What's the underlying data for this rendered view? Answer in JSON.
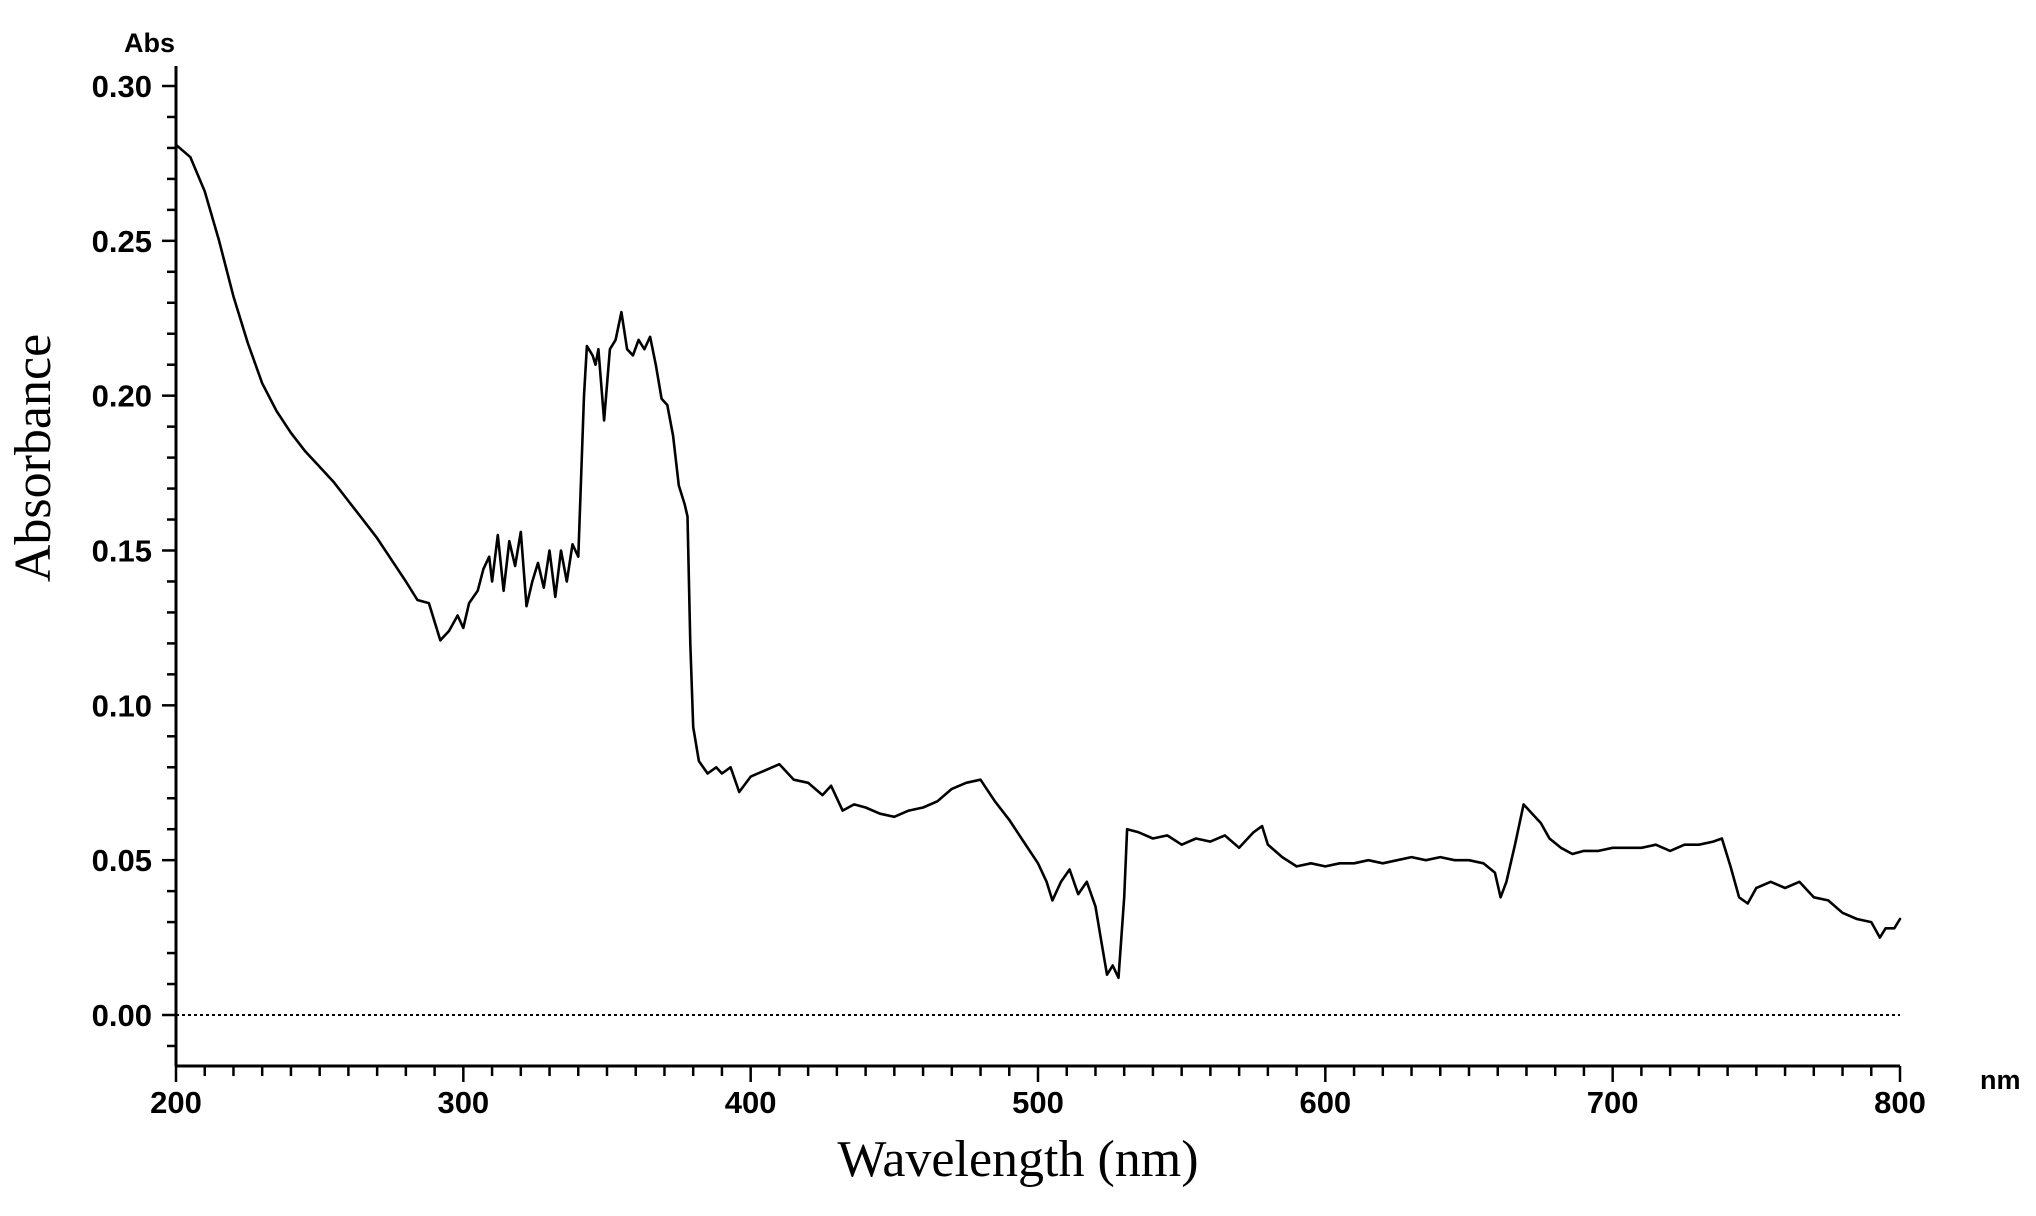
{
  "chart_data": {
    "type": "line",
    "xlabel": "Wavelength (nm)",
    "ylabel": "Absorbance",
    "x_unit": "nm",
    "y_unit": "Abs",
    "xlim": [
      200,
      800
    ],
    "ylim": [
      -0.015,
      0.305
    ],
    "x_ticks": [
      200,
      300,
      400,
      500,
      600,
      700,
      800
    ],
    "x_tick_labels": [
      "200",
      "300",
      "400",
      "500",
      "600",
      "700",
      "800"
    ],
    "y_ticks": [
      0.0,
      0.05,
      0.1,
      0.15,
      0.2,
      0.25,
      0.3
    ],
    "y_tick_labels": [
      "0.00",
      "0.05",
      "0.10",
      "0.15",
      "0.20",
      "0.25",
      "0.30"
    ],
    "baseline": 0.0,
    "grid": false,
    "series": [
      {
        "color": "#000000",
        "points": [
          [
            200,
            0.281
          ],
          [
            205,
            0.277
          ],
          [
            210,
            0.266
          ],
          [
            215,
            0.25
          ],
          [
            220,
            0.232
          ],
          [
            225,
            0.217
          ],
          [
            230,
            0.204
          ],
          [
            235,
            0.195
          ],
          [
            240,
            0.188
          ],
          [
            245,
            0.182
          ],
          [
            250,
            0.177
          ],
          [
            255,
            0.172
          ],
          [
            260,
            0.166
          ],
          [
            265,
            0.16
          ],
          [
            270,
            0.154
          ],
          [
            275,
            0.147
          ],
          [
            280,
            0.14
          ],
          [
            284,
            0.134
          ],
          [
            288,
            0.133
          ],
          [
            290,
            0.127
          ],
          [
            292,
            0.121
          ],
          [
            295,
            0.124
          ],
          [
            298,
            0.129
          ],
          [
            300,
            0.125
          ],
          [
            302,
            0.133
          ],
          [
            305,
            0.137
          ],
          [
            307,
            0.144
          ],
          [
            309,
            0.148
          ],
          [
            310,
            0.14
          ],
          [
            312,
            0.155
          ],
          [
            314,
            0.137
          ],
          [
            316,
            0.153
          ],
          [
            318,
            0.145
          ],
          [
            320,
            0.156
          ],
          [
            322,
            0.132
          ],
          [
            324,
            0.14
          ],
          [
            326,
            0.146
          ],
          [
            328,
            0.138
          ],
          [
            330,
            0.15
          ],
          [
            332,
            0.135
          ],
          [
            334,
            0.15
          ],
          [
            336,
            0.14
          ],
          [
            338,
            0.152
          ],
          [
            340,
            0.148
          ],
          [
            342,
            0.2
          ],
          [
            343,
            0.216
          ],
          [
            345,
            0.213
          ],
          [
            346,
            0.21
          ],
          [
            347,
            0.215
          ],
          [
            349,
            0.192
          ],
          [
            351,
            0.215
          ],
          [
            353,
            0.218
          ],
          [
            355,
            0.227
          ],
          [
            357,
            0.215
          ],
          [
            359,
            0.213
          ],
          [
            361,
            0.218
          ],
          [
            363,
            0.215
          ],
          [
            365,
            0.219
          ],
          [
            367,
            0.21
          ],
          [
            369,
            0.199
          ],
          [
            371,
            0.197
          ],
          [
            373,
            0.187
          ],
          [
            375,
            0.171
          ],
          [
            377,
            0.165
          ],
          [
            378,
            0.161
          ],
          [
            379,
            0.12
          ],
          [
            380,
            0.093
          ],
          [
            382,
            0.082
          ],
          [
            385,
            0.078
          ],
          [
            388,
            0.08
          ],
          [
            390,
            0.078
          ],
          [
            393,
            0.08
          ],
          [
            396,
            0.072
          ],
          [
            400,
            0.077
          ],
          [
            405,
            0.079
          ],
          [
            410,
            0.081
          ],
          [
            415,
            0.076
          ],
          [
            420,
            0.075
          ],
          [
            425,
            0.071
          ],
          [
            428,
            0.074
          ],
          [
            432,
            0.066
          ],
          [
            436,
            0.068
          ],
          [
            440,
            0.067
          ],
          [
            445,
            0.065
          ],
          [
            450,
            0.064
          ],
          [
            455,
            0.066
          ],
          [
            460,
            0.067
          ],
          [
            465,
            0.069
          ],
          [
            470,
            0.073
          ],
          [
            475,
            0.075
          ],
          [
            480,
            0.076
          ],
          [
            485,
            0.069
          ],
          [
            490,
            0.063
          ],
          [
            495,
            0.056
          ],
          [
            500,
            0.049
          ],
          [
            503,
            0.043
          ],
          [
            505,
            0.037
          ],
          [
            508,
            0.043
          ],
          [
            511,
            0.047
          ],
          [
            514,
            0.039
          ],
          [
            517,
            0.043
          ],
          [
            520,
            0.035
          ],
          [
            522,
            0.024
          ],
          [
            524,
            0.013
          ],
          [
            526,
            0.016
          ],
          [
            528,
            0.012
          ],
          [
            530,
            0.038
          ],
          [
            531,
            0.06
          ],
          [
            535,
            0.059
          ],
          [
            540,
            0.057
          ],
          [
            545,
            0.058
          ],
          [
            550,
            0.055
          ],
          [
            555,
            0.057
          ],
          [
            560,
            0.056
          ],
          [
            565,
            0.058
          ],
          [
            570,
            0.054
          ],
          [
            575,
            0.059
          ],
          [
            578,
            0.061
          ],
          [
            580,
            0.055
          ],
          [
            585,
            0.051
          ],
          [
            590,
            0.048
          ],
          [
            595,
            0.049
          ],
          [
            600,
            0.048
          ],
          [
            605,
            0.049
          ],
          [
            610,
            0.049
          ],
          [
            615,
            0.05
          ],
          [
            620,
            0.049
          ],
          [
            625,
            0.05
          ],
          [
            630,
            0.051
          ],
          [
            635,
            0.05
          ],
          [
            640,
            0.051
          ],
          [
            645,
            0.05
          ],
          [
            650,
            0.05
          ],
          [
            655,
            0.049
          ],
          [
            659,
            0.046
          ],
          [
            661,
            0.038
          ],
          [
            663,
            0.043
          ],
          [
            666,
            0.055
          ],
          [
            669,
            0.068
          ],
          [
            672,
            0.065
          ],
          [
            675,
            0.062
          ],
          [
            678,
            0.057
          ],
          [
            682,
            0.054
          ],
          [
            686,
            0.052
          ],
          [
            690,
            0.053
          ],
          [
            695,
            0.053
          ],
          [
            700,
            0.054
          ],
          [
            705,
            0.054
          ],
          [
            710,
            0.054
          ],
          [
            715,
            0.055
          ],
          [
            720,
            0.053
          ],
          [
            725,
            0.055
          ],
          [
            730,
            0.055
          ],
          [
            735,
            0.056
          ],
          [
            738,
            0.057
          ],
          [
            741,
            0.048
          ],
          [
            744,
            0.038
          ],
          [
            747,
            0.036
          ],
          [
            750,
            0.041
          ],
          [
            755,
            0.043
          ],
          [
            760,
            0.041
          ],
          [
            765,
            0.043
          ],
          [
            770,
            0.038
          ],
          [
            775,
            0.037
          ],
          [
            780,
            0.033
          ],
          [
            785,
            0.031
          ],
          [
            790,
            0.03
          ],
          [
            793,
            0.025
          ],
          [
            795,
            0.028
          ],
          [
            798,
            0.028
          ],
          [
            800,
            0.031
          ]
        ]
      }
    ]
  }
}
